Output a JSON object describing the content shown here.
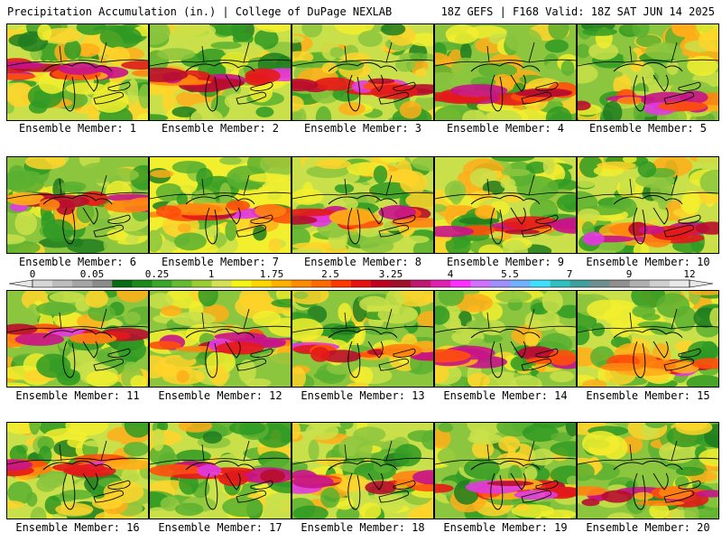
{
  "header": {
    "title_left": "Precipitation Accumulation (in.) | College of DuPage NEXLAB",
    "title_right": "18Z GEFS | F168 Valid: 18Z SAT JUN 14 2025"
  },
  "panels": [
    {
      "label": "Ensemble Member: 1"
    },
    {
      "label": "Ensemble Member: 2"
    },
    {
      "label": "Ensemble Member: 3"
    },
    {
      "label": "Ensemble Member: 4"
    },
    {
      "label": "Ensemble Member: 5"
    },
    {
      "label": "Ensemble Member: 6"
    },
    {
      "label": "Ensemble Member: 7"
    },
    {
      "label": "Ensemble Member: 8"
    },
    {
      "label": "Ensemble Member: 9"
    },
    {
      "label": "Ensemble Member: 10"
    },
    {
      "label": "Ensemble Member: 11"
    },
    {
      "label": "Ensemble Member: 12"
    },
    {
      "label": "Ensemble Member: 13"
    },
    {
      "label": "Ensemble Member: 14"
    },
    {
      "label": "Ensemble Member: 15"
    },
    {
      "label": "Ensemble Member: 16"
    },
    {
      "label": "Ensemble Member: 17"
    },
    {
      "label": "Ensemble Member: 18"
    },
    {
      "label": "Ensemble Member: 19"
    },
    {
      "label": "Ensemble Member: 20"
    }
  ],
  "colorbar": {
    "labels": [
      "0",
      "0.05",
      "0.25",
      "1",
      "1.75",
      "2.5",
      "3.25",
      "4",
      "5.5",
      "7",
      "9",
      "12"
    ],
    "colors": [
      "#d6d6d6",
      "#bdbdbd",
      "#a5a5a5",
      "#8c8c8c",
      "#0a6b16",
      "#1a8a1a",
      "#3aa62a",
      "#66bb33",
      "#9acd32",
      "#d4e157",
      "#f5f515",
      "#ffd700",
      "#ffb000",
      "#ff8c00",
      "#ff6a00",
      "#ff3a00",
      "#e81010",
      "#c00020",
      "#a0102a",
      "#c01870",
      "#e020b0",
      "#ff30ff",
      "#d070ff",
      "#9f8fff",
      "#70b0ff",
      "#40e0ff",
      "#30c0c0",
      "#40a0a0",
      "#709090",
      "#909090",
      "#b0b0b0",
      "#cfcfcf",
      "#e8e8e8"
    ]
  }
}
